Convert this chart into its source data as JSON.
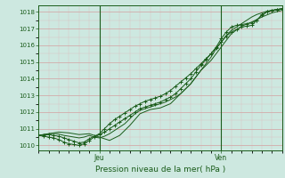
{
  "title": "Pression niveau de la mer( hPa )",
  "ylabel_vals": [
    1010,
    1011,
    1012,
    1013,
    1014,
    1015,
    1016,
    1017,
    1018
  ],
  "ylim": [
    1009.7,
    1018.4
  ],
  "xlim": [
    0,
    48
  ],
  "bg_color": "#cde8e0",
  "grid_major_color": "#d4a0a0",
  "grid_minor_color": "#ddc0c0",
  "line_color": "#1a5c1a",
  "jeu_x": 12,
  "ven_x": 36,
  "n_minor_x": 4,
  "line1": [
    [
      0,
      1010.6
    ],
    [
      1,
      1010.65
    ],
    [
      2,
      1010.7
    ],
    [
      3,
      1010.72
    ],
    [
      4,
      1010.68
    ],
    [
      5,
      1010.6
    ],
    [
      6,
      1010.55
    ],
    [
      7,
      1010.5
    ],
    [
      8,
      1010.45
    ],
    [
      9,
      1010.5
    ],
    [
      10,
      1010.6
    ],
    [
      11,
      1010.5
    ],
    [
      12,
      1010.45
    ],
    [
      13,
      1010.55
    ],
    [
      14,
      1010.7
    ],
    [
      15,
      1010.9
    ],
    [
      16,
      1011.1
    ],
    [
      17,
      1011.3
    ],
    [
      18,
      1011.6
    ],
    [
      19,
      1011.9
    ],
    [
      20,
      1012.1
    ],
    [
      21,
      1012.2
    ],
    [
      22,
      1012.3
    ],
    [
      23,
      1012.4
    ],
    [
      24,
      1012.5
    ],
    [
      25,
      1012.6
    ],
    [
      26,
      1012.75
    ],
    [
      27,
      1012.9
    ],
    [
      28,
      1013.1
    ],
    [
      29,
      1013.4
    ],
    [
      30,
      1013.7
    ],
    [
      31,
      1014.1
    ],
    [
      32,
      1014.5
    ],
    [
      33,
      1014.9
    ],
    [
      34,
      1015.3
    ],
    [
      35,
      1015.8
    ],
    [
      36,
      1016.2
    ],
    [
      37,
      1016.6
    ],
    [
      38,
      1016.9
    ],
    [
      39,
      1017.1
    ],
    [
      40,
      1017.3
    ],
    [
      41,
      1017.5
    ],
    [
      42,
      1017.7
    ],
    [
      43,
      1017.85
    ],
    [
      44,
      1017.95
    ],
    [
      45,
      1018.05
    ],
    [
      46,
      1018.1
    ],
    [
      47,
      1018.15
    ],
    [
      48,
      1018.2
    ]
  ],
  "line2": [
    [
      0,
      1010.6
    ],
    [
      2,
      1010.7
    ],
    [
      4,
      1010.8
    ],
    [
      6,
      1010.75
    ],
    [
      8,
      1010.65
    ],
    [
      10,
      1010.7
    ],
    [
      12,
      1010.5
    ],
    [
      14,
      1010.3
    ],
    [
      16,
      1010.6
    ],
    [
      18,
      1011.2
    ],
    [
      20,
      1011.9
    ],
    [
      22,
      1012.15
    ],
    [
      24,
      1012.25
    ],
    [
      26,
      1012.5
    ],
    [
      28,
      1013.1
    ],
    [
      30,
      1013.7
    ],
    [
      32,
      1014.5
    ],
    [
      34,
      1015.1
    ],
    [
      36,
      1015.9
    ],
    [
      38,
      1016.7
    ],
    [
      40,
      1017.15
    ],
    [
      42,
      1017.4
    ],
    [
      44,
      1017.7
    ],
    [
      46,
      1017.95
    ],
    [
      48,
      1018.1
    ]
  ],
  "line3_with_markers": [
    [
      0,
      1010.6
    ],
    [
      1,
      1010.55
    ],
    [
      2,
      1010.5
    ],
    [
      3,
      1010.45
    ],
    [
      4,
      1010.35
    ],
    [
      5,
      1010.2
    ],
    [
      6,
      1010.1
    ],
    [
      7,
      1010.05
    ],
    [
      8,
      1010.0
    ],
    [
      9,
      1010.1
    ],
    [
      10,
      1010.3
    ],
    [
      11,
      1010.5
    ],
    [
      12,
      1010.65
    ],
    [
      13,
      1010.8
    ],
    [
      14,
      1011.0
    ],
    [
      15,
      1011.2
    ],
    [
      16,
      1011.4
    ],
    [
      17,
      1011.6
    ],
    [
      18,
      1011.8
    ],
    [
      19,
      1012.0
    ],
    [
      20,
      1012.2
    ],
    [
      21,
      1012.3
    ],
    [
      22,
      1012.4
    ],
    [
      23,
      1012.5
    ],
    [
      24,
      1012.6
    ],
    [
      25,
      1012.75
    ],
    [
      26,
      1012.9
    ],
    [
      27,
      1013.1
    ],
    [
      28,
      1013.4
    ],
    [
      29,
      1013.7
    ],
    [
      30,
      1014.0
    ],
    [
      31,
      1014.4
    ],
    [
      32,
      1014.8
    ],
    [
      33,
      1015.15
    ],
    [
      34,
      1015.5
    ],
    [
      35,
      1015.9
    ],
    [
      36,
      1016.4
    ],
    [
      37,
      1016.8
    ],
    [
      38,
      1017.1
    ],
    [
      39,
      1017.2
    ],
    [
      40,
      1017.25
    ],
    [
      41,
      1017.3
    ],
    [
      42,
      1017.35
    ],
    [
      43,
      1017.5
    ],
    [
      44,
      1017.8
    ],
    [
      45,
      1018.0
    ],
    [
      46,
      1018.1
    ],
    [
      47,
      1018.15
    ],
    [
      48,
      1018.2
    ]
  ],
  "line4_with_markers": [
    [
      0,
      1010.6
    ],
    [
      1,
      1010.62
    ],
    [
      2,
      1010.65
    ],
    [
      3,
      1010.6
    ],
    [
      4,
      1010.55
    ],
    [
      5,
      1010.45
    ],
    [
      6,
      1010.35
    ],
    [
      7,
      1010.25
    ],
    [
      8,
      1010.15
    ],
    [
      9,
      1010.2
    ],
    [
      10,
      1010.4
    ],
    [
      11,
      1010.55
    ],
    [
      12,
      1010.7
    ],
    [
      13,
      1011.0
    ],
    [
      14,
      1011.3
    ],
    [
      15,
      1011.55
    ],
    [
      16,
      1011.75
    ],
    [
      17,
      1011.95
    ],
    [
      18,
      1012.15
    ],
    [
      19,
      1012.35
    ],
    [
      20,
      1012.5
    ],
    [
      21,
      1012.65
    ],
    [
      22,
      1012.75
    ],
    [
      23,
      1012.85
    ],
    [
      24,
      1012.95
    ],
    [
      25,
      1013.1
    ],
    [
      26,
      1013.3
    ],
    [
      27,
      1013.55
    ],
    [
      28,
      1013.8
    ],
    [
      29,
      1014.05
    ],
    [
      30,
      1014.3
    ],
    [
      31,
      1014.6
    ],
    [
      32,
      1014.9
    ],
    [
      33,
      1015.2
    ],
    [
      34,
      1015.5
    ],
    [
      35,
      1015.85
    ],
    [
      36,
      1016.2
    ],
    [
      37,
      1016.55
    ],
    [
      38,
      1016.8
    ],
    [
      39,
      1016.95
    ],
    [
      40,
      1017.1
    ],
    [
      41,
      1017.15
    ],
    [
      42,
      1017.2
    ],
    [
      43,
      1017.5
    ],
    [
      44,
      1017.85
    ],
    [
      45,
      1018.0
    ],
    [
      46,
      1018.1
    ],
    [
      47,
      1018.15
    ],
    [
      48,
      1018.2
    ]
  ]
}
